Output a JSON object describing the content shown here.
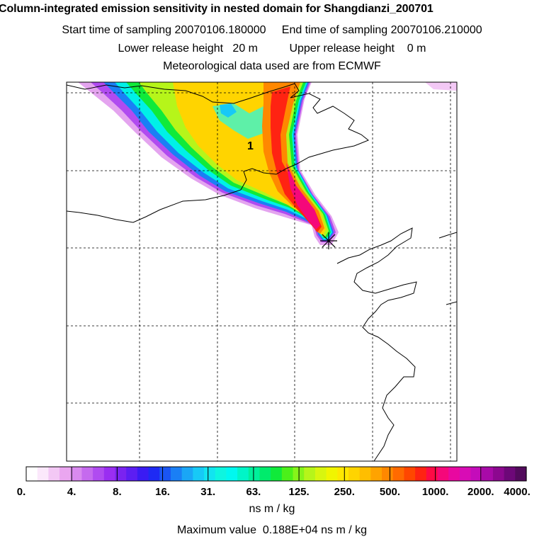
{
  "header": {
    "title": "Column-integrated emission sensitivity in nested domain for Shangdianzi_200701",
    "sampling_line": "Start time of sampling 20070106.180000     End time of sampling 20070106.210000",
    "release_line": "Lower release height   20 m          Upper release height    0 m",
    "met_line": "Meteorological data used are from ECMWF"
  },
  "map": {
    "marker_label": "1",
    "release_site_marker": "star-icon"
  },
  "colorbar": {
    "labels": [
      "0.",
      "4.",
      "8.",
      "16.",
      "31.",
      "63.",
      "125.",
      "250.",
      "500.",
      "1000.",
      "2000.",
      "4000."
    ],
    "colors": [
      "#ffffff",
      "#fbe8fb",
      "#f3c8f5",
      "#eaa6f0",
      "#d98aef",
      "#c56aee",
      "#b04bf0",
      "#9a2ef1",
      "#7a23f0",
      "#5c1ef2",
      "#3a1bf3",
      "#1e2af4",
      "#1a55f3",
      "#1a7ff5",
      "#1aa6f6",
      "#17c9f6",
      "#12e4f0",
      "#0ef5e0",
      "#00f8f0",
      "#00f5c8",
      "#00f09b",
      "#00eb6c",
      "#10ea3a",
      "#4bf01a",
      "#86f41a",
      "#b6f51a",
      "#d8f60f",
      "#f1f500",
      "#ffe800",
      "#ffd400",
      "#ffbe00",
      "#ffa300",
      "#ff8800",
      "#ff6a00",
      "#ff4700",
      "#ff2312",
      "#ff0a45",
      "#f5087a",
      "#e808a0",
      "#d80cb5",
      "#c40cba",
      "#a80aa8",
      "#8c088f",
      "#6d0878",
      "#520a5c"
    ],
    "units": "ns m / kg"
  },
  "footer": {
    "max_value": "Maximum value  0.188E+04 ns m / kg"
  }
}
